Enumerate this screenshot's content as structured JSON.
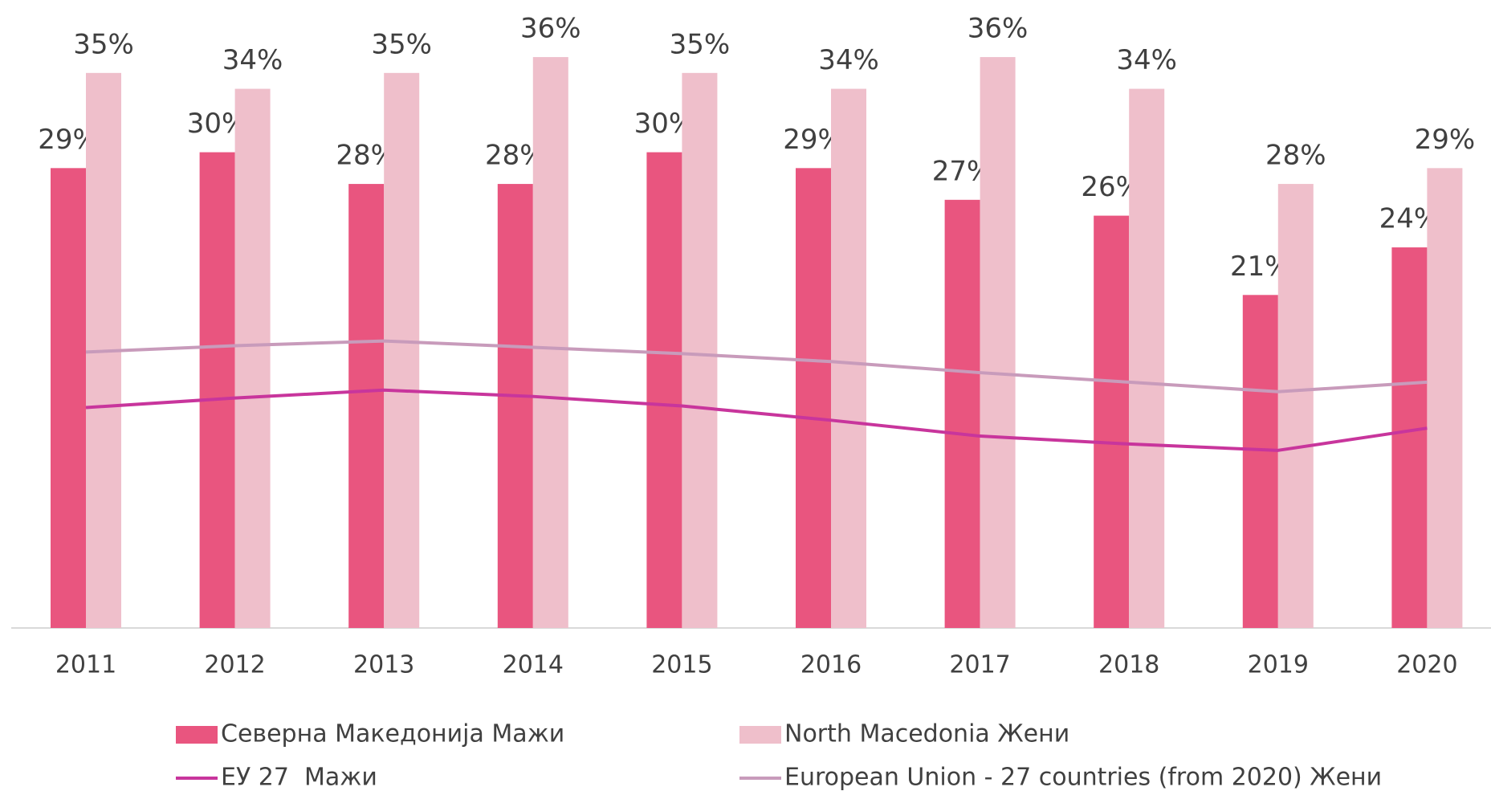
{
  "chart_data": {
    "type": "bar",
    "categories": [
      "2011",
      "2012",
      "2013",
      "2014",
      "2015",
      "2016",
      "2017",
      "2018",
      "2019",
      "2020"
    ],
    "ylim": [
      0,
      39.6
    ],
    "series": [
      {
        "name": "Северна Македонија Мажи",
        "type": "bar",
        "color": "#e9557f",
        "values": [
          29,
          30,
          28,
          28,
          30,
          29,
          27,
          26,
          21,
          24
        ],
        "value_labels": [
          "29%",
          "30%",
          "28%",
          "28%",
          "30%",
          "29%",
          "27%",
          "26%",
          "21%",
          "24%"
        ]
      },
      {
        "name": "North Macedonia Жени",
        "type": "bar",
        "color": "#efbfcb",
        "values": [
          35,
          34,
          35,
          36,
          35,
          34,
          36,
          34,
          28,
          29
        ],
        "value_labels": [
          "35%",
          "34%",
          "35%",
          "36%",
          "35%",
          "34%",
          "36%",
          "34%",
          "28%",
          "29%"
        ]
      },
      {
        "name": "ЕУ 27  Мажи",
        "type": "line",
        "color": "#c8359c",
        "values": [
          13.9,
          14.5,
          15.0,
          14.6,
          14.0,
          13.1,
          12.1,
          11.6,
          11.2,
          12.6
        ]
      },
      {
        "name": "European Union - 27 countries (from 2020) Жени",
        "type": "line",
        "color": "#c89bbb",
        "values": [
          17.4,
          17.8,
          18.1,
          17.7,
          17.3,
          16.8,
          16.1,
          15.5,
          14.9,
          15.5
        ]
      }
    ]
  }
}
